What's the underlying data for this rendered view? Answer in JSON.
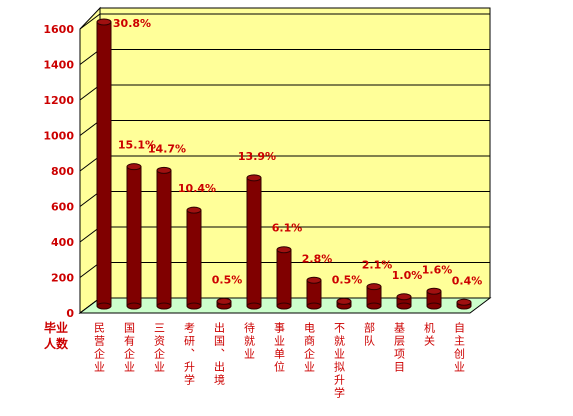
{
  "chart_data": {
    "type": "cylinder",
    "ylabel": "毕业人数",
    "categories": [
      "民营企业",
      "国有企业",
      "三资企业",
      "考研、升学",
      "出国、出境",
      "待就业",
      "事业单位",
      "电商企业",
      "不就业拟升学",
      "部队",
      "基层项目",
      "机关",
      "自主创业"
    ],
    "values": [
      1600,
      785,
      764,
      540,
      26,
      722,
      317,
      145,
      26,
      109,
      52,
      83,
      21
    ],
    "percent_labels": [
      "30.8%",
      "15.1%",
      "14.7%",
      "10.4%",
      "0.5%",
      "13.9%",
      "6.1%",
      "2.8%",
      "0.5%",
      "2.1%",
      "1.0%",
      "1.6%",
      "0.4%"
    ],
    "color": "#800000",
    "ylim": [
      0,
      1600
    ],
    "yticks": [
      0,
      200,
      400,
      600,
      800,
      1000,
      1200,
      1400,
      1600
    ],
    "grid": true
  }
}
